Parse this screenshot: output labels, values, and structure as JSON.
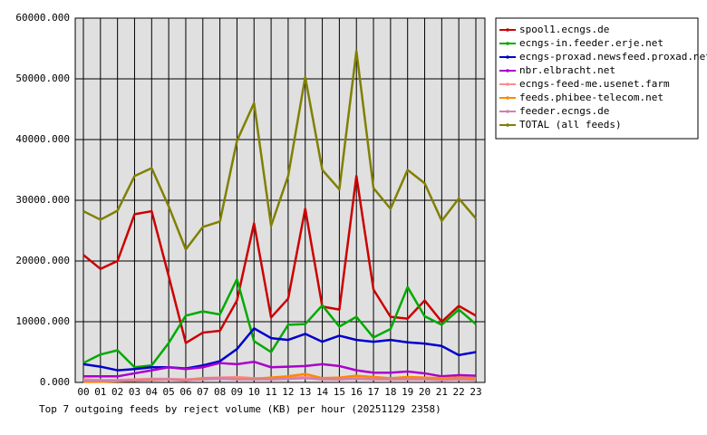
{
  "chart_data": {
    "type": "line",
    "title": "Top 7 outgoing feeds by reject volume (KB) per hour (20251129 2358)",
    "categories": [
      "00",
      "01",
      "02",
      "03",
      "04",
      "05",
      "06",
      "07",
      "08",
      "09",
      "10",
      "11",
      "12",
      "13",
      "14",
      "15",
      "16",
      "17",
      "18",
      "19",
      "20",
      "21",
      "22",
      "23"
    ],
    "ylim": [
      0,
      60000
    ],
    "yticks": [
      {
        "value": 0,
        "label": "0.000"
      },
      {
        "value": 10000,
        "label": "10000.000"
      },
      {
        "value": 20000,
        "label": "20000.000"
      },
      {
        "value": 30000,
        "label": "30000.000"
      },
      {
        "value": 40000,
        "label": "40000.000"
      },
      {
        "value": 50000,
        "label": "50000.000"
      },
      {
        "value": 60000,
        "label": "60000.000"
      }
    ],
    "grid": true,
    "legend": "right",
    "series": [
      {
        "name": "spool1.ecngs.de",
        "color": "#cc0000",
        "values": [
          21000,
          18700,
          20000,
          27700,
          28200,
          17500,
          6500,
          8200,
          8500,
          13500,
          26200,
          10700,
          13800,
          28600,
          12500,
          12000,
          34000,
          15300,
          10800,
          10500,
          13500,
          10000,
          12600,
          11000
        ]
      },
      {
        "name": "ecngs-in.feeder.erje.net",
        "color": "#00aa00",
        "values": [
          3200,
          4600,
          5300,
          2500,
          2800,
          6500,
          11000,
          11700,
          11200,
          17000,
          6800,
          5000,
          9500,
          9600,
          12700,
          9200,
          10800,
          7400,
          8800,
          15700,
          10900,
          9500,
          12000,
          9600
        ]
      },
      {
        "name": "ecngs-proxad.newsfeed.proxad.net",
        "color": "#0000cc",
        "values": [
          3000,
          2600,
          2000,
          2200,
          2500,
          2500,
          2300,
          2800,
          3500,
          5500,
          8900,
          7300,
          7000,
          8000,
          6700,
          7700,
          7000,
          6700,
          7000,
          6600,
          6400,
          6000,
          4500,
          5000
        ]
      },
      {
        "name": "nbr.elbracht.net",
        "color": "#aa00cc",
        "values": [
          1000,
          1000,
          1000,
          1500,
          2000,
          2500,
          2200,
          2500,
          3200,
          3000,
          3400,
          2500,
          2600,
          2700,
          3000,
          2700,
          2000,
          1600,
          1600,
          1800,
          1500,
          1000,
          1200,
          1100
        ]
      },
      {
        "name": "ecngs-feed-me.usenet.farm",
        "color": "#ff8c8c",
        "values": [
          500,
          400,
          400,
          500,
          600,
          600,
          500,
          700,
          800,
          900,
          700,
          600,
          800,
          900,
          600,
          500,
          700,
          600,
          500,
          600,
          600,
          500,
          600,
          500
        ]
      },
      {
        "name": "feeds.phibee-telecom.net",
        "color": "#ff8800",
        "values": [
          100,
          100,
          200,
          300,
          400,
          500,
          300,
          700,
          700,
          600,
          600,
          800,
          1000,
          1400,
          700,
          800,
          1100,
          900,
          700,
          900,
          800,
          700,
          800,
          700
        ]
      },
      {
        "name": "feeder.ecngs.de",
        "color": "#d080b0",
        "values": [
          300,
          300,
          300,
          400,
          500,
          500,
          400,
          500,
          600,
          500,
          500,
          500,
          600,
          700,
          500,
          500,
          600,
          500,
          500,
          500,
          500,
          400,
          500,
          400
        ]
      },
      {
        "name": "TOTAL (all feeds)",
        "color": "#808000",
        "values": [
          28200,
          26800,
          28300,
          34000,
          35300,
          29000,
          21900,
          25600,
          26500,
          39800,
          46000,
          25800,
          34000,
          50300,
          35000,
          31800,
          54600,
          32000,
          28600,
          35000,
          32800,
          26600,
          30300,
          27000
        ]
      }
    ]
  }
}
